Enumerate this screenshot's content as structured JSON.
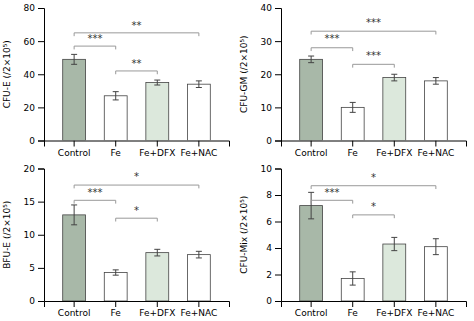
{
  "chart_data": [
    {
      "type": "bar",
      "ylabel": "CFU-E (/2×10⁵)",
      "ylim": [
        0,
        80
      ],
      "yticks": [
        0,
        20,
        40,
        60,
        80
      ],
      "categories": [
        "Control",
        "Fe",
        "Fe+DFX",
        "Fe+NAC"
      ],
      "values": [
        49,
        27,
        35,
        34
      ],
      "errors": [
        3,
        2.5,
        1.5,
        2
      ],
      "colors": [
        "#a8b8a8",
        "#ffffff",
        "#dce8dc",
        "#ffffff"
      ],
      "grid": false,
      "annotations": [
        {
          "x1": 0,
          "x2": 1,
          "y": 57,
          "label": "***",
          "label_y": 58
        },
        {
          "x1": 1,
          "x2": 2,
          "y": 42,
          "label": "**",
          "label_y": 43
        },
        {
          "x1": 0,
          "x2": 3,
          "y": 65,
          "label": "**",
          "label_y": 66
        }
      ]
    },
    {
      "type": "bar",
      "ylabel": "CFU-GM (/2×10⁵)",
      "ylim": [
        0,
        40
      ],
      "yticks": [
        0,
        10,
        20,
        30,
        40
      ],
      "categories": [
        "Control",
        "Fe",
        "Fe+DFX",
        "Fe+NAC"
      ],
      "values": [
        24.5,
        10,
        19,
        18
      ],
      "errors": [
        1,
        1.5,
        1,
        1
      ],
      "colors": [
        "#a8b8a8",
        "#ffffff",
        "#dce8dc",
        "#ffffff"
      ],
      "grid": false,
      "annotations": [
        {
          "x1": 0,
          "x2": 1,
          "y": 28,
          "label": "***",
          "label_y": 29
        },
        {
          "x1": 1,
          "x2": 2,
          "y": 23,
          "label": "***",
          "label_y": 24
        },
        {
          "x1": 0,
          "x2": 3,
          "y": 33,
          "label": "***",
          "label_y": 34
        }
      ]
    },
    {
      "type": "bar",
      "ylabel": "BFU-E (/2×10⁵)",
      "ylim": [
        0,
        20
      ],
      "yticks": [
        0,
        5,
        10,
        15,
        20
      ],
      "categories": [
        "Control",
        "Fe",
        "Fe+DFX",
        "Fe+NAC"
      ],
      "values": [
        13,
        4.3,
        7.3,
        7.0
      ],
      "errors": [
        1.5,
        0.4,
        0.5,
        0.5
      ],
      "colors": [
        "#a8b8a8",
        "#ffffff",
        "#dce8dc",
        "#ffffff"
      ],
      "grid": false,
      "annotations": [
        {
          "x1": 0,
          "x2": 1,
          "y": 15.2,
          "label": "***",
          "label_y": 15.6
        },
        {
          "x1": 1,
          "x2": 2,
          "y": 12.5,
          "label": "*",
          "label_y": 12.9
        },
        {
          "x1": 0,
          "x2": 3,
          "y": 17.5,
          "label": "*",
          "label_y": 17.9
        }
      ]
    },
    {
      "type": "bar",
      "ylabel": "CFU-Mix (/2×10⁵)",
      "ylim": [
        0,
        10
      ],
      "yticks": [
        0,
        2,
        4,
        6,
        8,
        10
      ],
      "categories": [
        "Control",
        "Fe",
        "Fe+DFX",
        "Fe+NAC"
      ],
      "values": [
        7.2,
        1.7,
        4.3,
        4.1
      ],
      "errors": [
        1.0,
        0.5,
        0.5,
        0.6
      ],
      "colors": [
        "#a8b8a8",
        "#ffffff",
        "#dce8dc",
        "#ffffff"
      ],
      "grid": false,
      "annotations": [
        {
          "x1": 0,
          "x2": 1,
          "y": 7.6,
          "label": "***",
          "label_y": 7.8
        },
        {
          "x1": 1,
          "x2": 2,
          "y": 6.5,
          "label": "*",
          "label_y": 6.7
        },
        {
          "x1": 0,
          "x2": 3,
          "y": 8.7,
          "label": "*",
          "label_y": 8.9
        }
      ]
    }
  ]
}
